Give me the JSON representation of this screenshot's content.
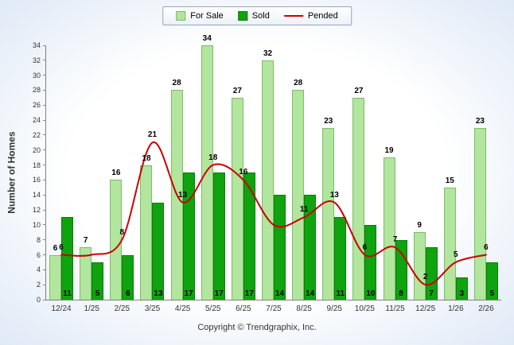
{
  "legend": {
    "for_sale": "For Sale",
    "sold": "Sold",
    "pended": "Pended"
  },
  "footer": {
    "copyright": "Copyright © Trendgraphix, Inc."
  },
  "chart_data": {
    "type": "bar",
    "title": "",
    "ylabel": "Number of Homes",
    "xlabel": "",
    "ylim": [
      0,
      34
    ],
    "yticks": [
      0,
      2,
      4,
      6,
      8,
      10,
      12,
      14,
      16,
      18,
      20,
      22,
      24,
      26,
      28,
      30,
      32,
      34
    ],
    "grid": false,
    "legend_position": "top-center",
    "categories": [
      "12/24",
      "1/25",
      "2/25",
      "3/25",
      "4/25",
      "5/25",
      "6/25",
      "7/25",
      "8/25",
      "9/25",
      "10/25",
      "11/25",
      "12/25",
      "1/26",
      "2/26"
    ],
    "series": [
      {
        "name": "For Sale",
        "type": "bar",
        "color": "#b2e59e",
        "border": "#7dbd66",
        "values": [
          6,
          7,
          16,
          18,
          28,
          34,
          27,
          32,
          28,
          23,
          27,
          19,
          9,
          15,
          23
        ]
      },
      {
        "name": "Sold",
        "type": "bar",
        "color": "#0fa30f",
        "border": "#0a7d0a",
        "values": [
          11,
          5,
          6,
          13,
          17,
          17,
          17,
          14,
          14,
          11,
          10,
          8,
          7,
          3,
          5
        ]
      },
      {
        "name": "Pended",
        "type": "line",
        "color": "#cc0000",
        "values": [
          6,
          6,
          8,
          21,
          13,
          18,
          16,
          10,
          11,
          13,
          6,
          7,
          2,
          5,
          6
        ],
        "hide_label_at": [
          1,
          7
        ]
      }
    ]
  }
}
